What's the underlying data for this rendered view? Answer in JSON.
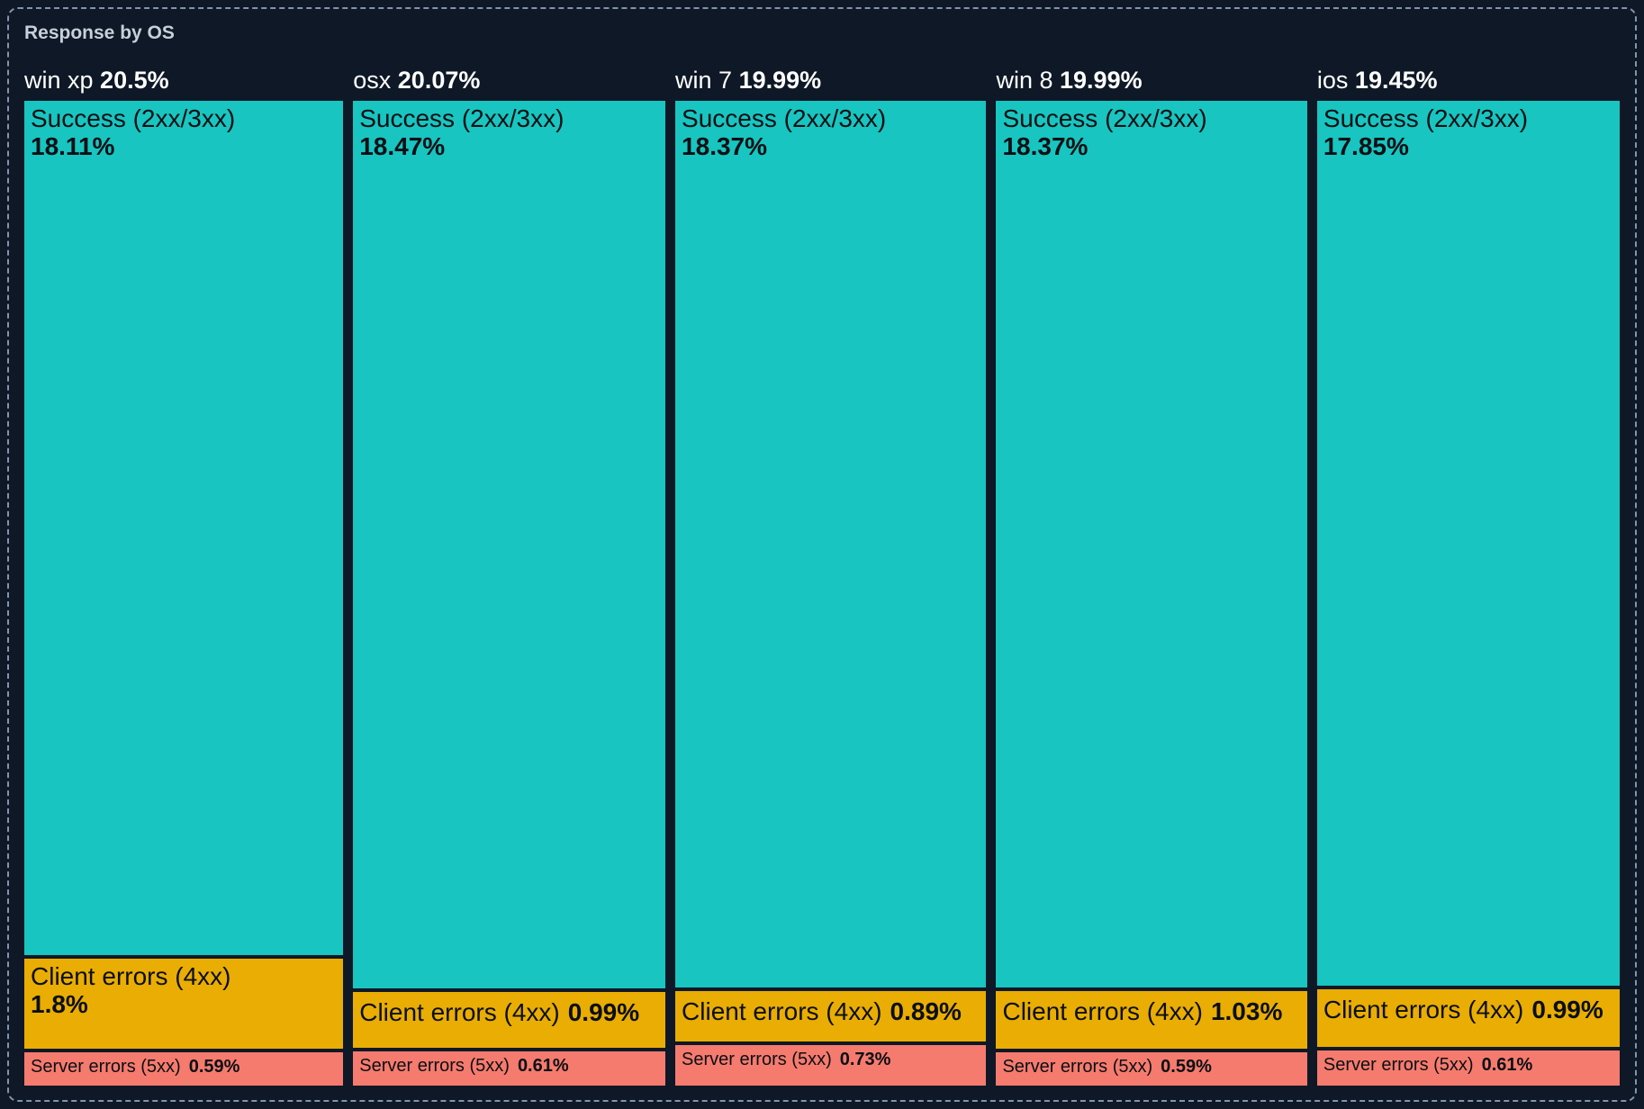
{
  "panel": {
    "title": "Response by OS"
  },
  "colors": {
    "background": "#0e1826",
    "border": "#8494ab",
    "title_text": "#c8cfda",
    "header_text": "#ffffff",
    "segment_text": "#0b0f14",
    "success": "#18c5c0",
    "client_errors": "#e9ad03",
    "server_errors": "#f57b6e"
  },
  "chart_data": {
    "type": "treemap",
    "title": "Response by OS",
    "orientation": "vertical-columns",
    "legend": false,
    "note": "Column widths proportional to OS total percent; segment heights proportional to segment percent of column total.",
    "groups": [
      {
        "label": "win xp",
        "total_label": "20.5%",
        "total": 20.5,
        "segments": [
          {
            "label": "Success (2xx/3xx)",
            "value_label": "18.11%",
            "value": 18.11,
            "category": "success"
          },
          {
            "label": "Client errors (4xx)",
            "value_label": "1.8%",
            "value": 1.8,
            "category": "client_errors"
          },
          {
            "label": "Server errors (5xx)",
            "value_label": "0.59%",
            "value": 0.59,
            "category": "server_errors"
          }
        ]
      },
      {
        "label": "osx",
        "total_label": "20.07%",
        "total": 20.07,
        "segments": [
          {
            "label": "Success (2xx/3xx)",
            "value_label": "18.47%",
            "value": 18.47,
            "category": "success"
          },
          {
            "label": "Client errors (4xx)",
            "value_label": "0.99%",
            "value": 0.99,
            "category": "client_errors"
          },
          {
            "label": "Server errors (5xx)",
            "value_label": "0.61%",
            "value": 0.61,
            "category": "server_errors"
          }
        ]
      },
      {
        "label": "win 7",
        "total_label": "19.99%",
        "total": 19.99,
        "segments": [
          {
            "label": "Success (2xx/3xx)",
            "value_label": "18.37%",
            "value": 18.37,
            "category": "success"
          },
          {
            "label": "Client errors (4xx)",
            "value_label": "0.89%",
            "value": 0.89,
            "category": "client_errors"
          },
          {
            "label": "Server errors (5xx)",
            "value_label": "0.73%",
            "value": 0.73,
            "category": "server_errors"
          }
        ]
      },
      {
        "label": "win 8",
        "total_label": "19.99%",
        "total": 19.99,
        "segments": [
          {
            "label": "Success (2xx/3xx)",
            "value_label": "18.37%",
            "value": 18.37,
            "category": "success"
          },
          {
            "label": "Client errors (4xx)",
            "value_label": "1.03%",
            "value": 1.03,
            "category": "client_errors"
          },
          {
            "label": "Server errors (5xx)",
            "value_label": "0.59%",
            "value": 0.59,
            "category": "server_errors"
          }
        ]
      },
      {
        "label": "ios",
        "total_label": "19.45%",
        "total": 19.45,
        "segments": [
          {
            "label": "Success (2xx/3xx)",
            "value_label": "17.85%",
            "value": 17.85,
            "category": "success"
          },
          {
            "label": "Client errors (4xx)",
            "value_label": "0.99%",
            "value": 0.99,
            "category": "client_errors"
          },
          {
            "label": "Server errors (5xx)",
            "value_label": "0.61%",
            "value": 0.61,
            "category": "server_errors"
          }
        ]
      }
    ]
  }
}
